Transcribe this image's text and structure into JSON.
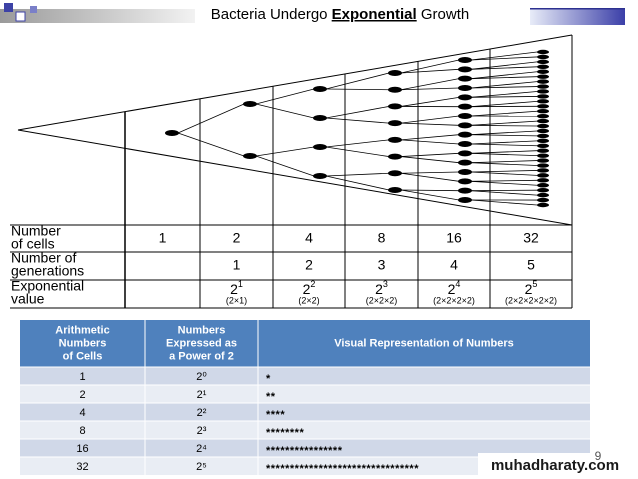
{
  "header": {
    "title_before": "Bacteria Undergo",
    "title_emphasis": "Exponential",
    "title_after": "Growth"
  },
  "diagram": {
    "row_labels": [
      [
        "Number",
        "of cells"
      ],
      [
        "Number of",
        "generations"
      ],
      [
        "Exponential",
        "value"
      ]
    ],
    "cells": [
      1,
      2,
      4,
      8,
      16,
      32
    ],
    "generations": [
      1,
      2,
      3,
      4,
      5
    ],
    "exponential": [
      {
        "base": "2",
        "exponent": "1",
        "expansion": "(2×1)"
      },
      {
        "base": "2",
        "exponent": "2",
        "expansion": "(2×2)"
      },
      {
        "base": "2",
        "exponent": "3",
        "expansion": "(2×2×2)"
      },
      {
        "base": "2",
        "exponent": "4",
        "expansion": "(2×2×2×2)"
      },
      {
        "base": "2",
        "exponent": "5",
        "expansion": "(2×2×2×2×2)"
      }
    ]
  },
  "table": {
    "headers": [
      [
        "Arithmetic",
        "Numbers",
        "of Cells"
      ],
      [
        "Numbers",
        "Expressed as",
        "a Power of 2"
      ],
      [
        "Visual Representation of Numbers"
      ]
    ],
    "rows": [
      [
        "1",
        "2⁰",
        "*"
      ],
      [
        "2",
        "2¹",
        "**"
      ],
      [
        "4",
        "2²",
        "****"
      ],
      [
        "8",
        "2³",
        "********"
      ],
      [
        "16",
        "2⁴",
        "****************"
      ],
      [
        "32",
        "2⁵",
        "********************************"
      ]
    ]
  },
  "footer": {
    "page_number": "9",
    "watermark": "muhadharaty.com"
  }
}
